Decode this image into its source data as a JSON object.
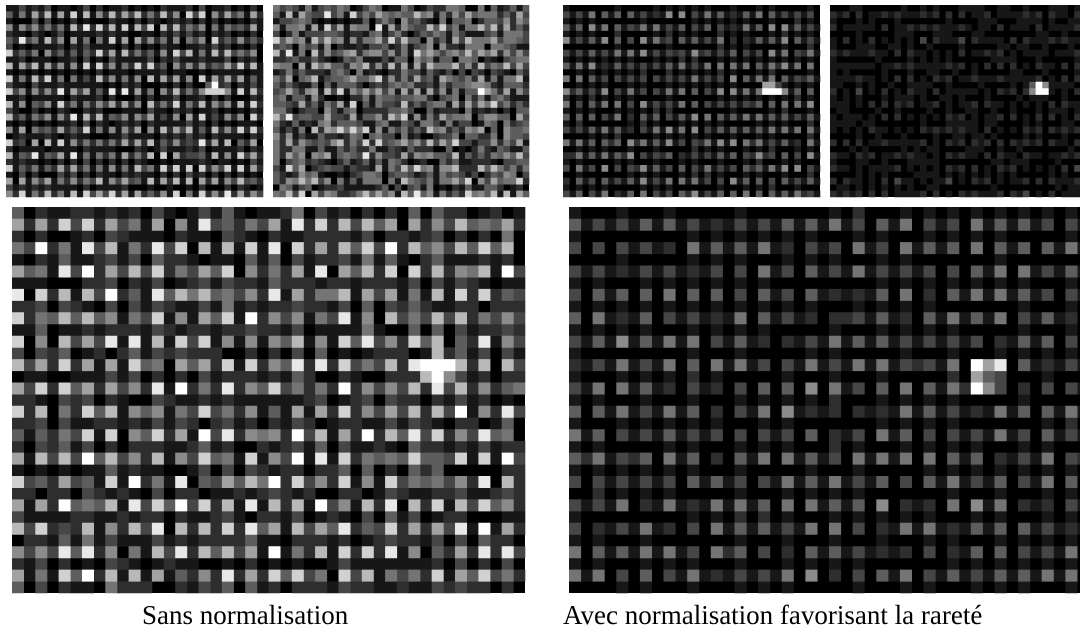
{
  "captions": {
    "left": "Sans normalisation",
    "right": "Avec normalisation favorisant la rareté"
  }
}
